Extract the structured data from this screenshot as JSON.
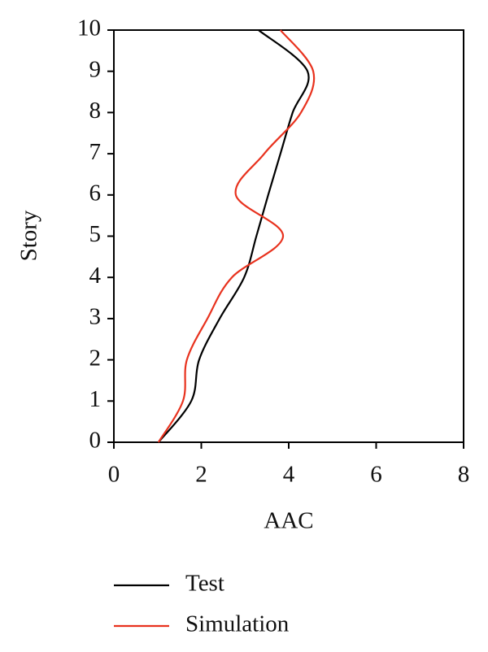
{
  "chart_data": {
    "type": "line",
    "xlabel": "AAC",
    "ylabel": "Story",
    "y": [
      0,
      1,
      2,
      3,
      4,
      5,
      6,
      7,
      8,
      9,
      10
    ],
    "series": [
      {
        "name": "Test",
        "color": "#000000",
        "values": [
          1.02,
          1.77,
          1.95,
          2.42,
          2.98,
          3.26,
          3.53,
          3.81,
          4.09,
          4.43,
          3.31
        ]
      },
      {
        "name": "Simulation",
        "color": "#e8321e",
        "values": [
          1.02,
          1.58,
          1.67,
          2.14,
          2.7,
          3.87,
          2.79,
          3.44,
          4.28,
          4.56,
          3.81
        ]
      }
    ],
    "xlim": [
      0,
      8
    ],
    "xticks": [
      0,
      2,
      4,
      6,
      8
    ],
    "ylim": [
      0,
      10
    ],
    "yticks": [
      0,
      1,
      2,
      3,
      4,
      5,
      6,
      7,
      8,
      9,
      10
    ],
    "legend": "bottom"
  }
}
